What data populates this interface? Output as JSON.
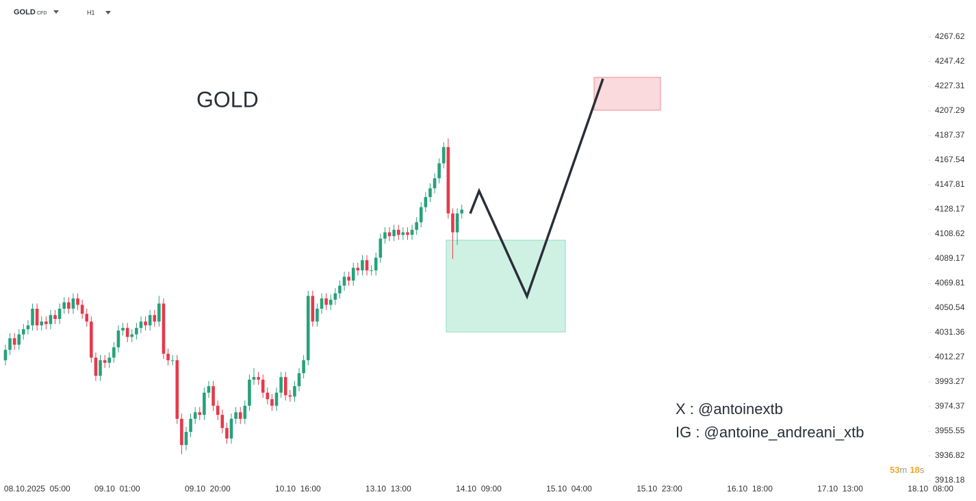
{
  "header": {
    "symbol": "GOLD",
    "symbol_tag": "CFD",
    "interval": "H1"
  },
  "chart_data": {
    "type": "candlestick",
    "log_scale": true,
    "up_color": "#26a17b",
    "down_color": "#e5394a",
    "title": "GOLD",
    "annotations": [
      "X : @antoinextb",
      "IG : @antoine_andreani_xtb"
    ],
    "timer": [
      "53",
      "m",
      "18",
      "s"
    ],
    "open": [
      4010,
      4018,
      4027,
      4022,
      4030,
      4034,
      4037,
      4050,
      4037,
      4040,
      4038,
      4045,
      4042,
      4050,
      4055,
      4050,
      4058,
      4053,
      4046,
      4040,
      4012,
      3998,
      4010,
      4008,
      4012,
      4020,
      4033,
      4035,
      4028,
      4030,
      4035,
      4040,
      4037,
      4045,
      4040,
      4054,
      4015,
      4010,
      4010,
      3965,
      3945,
      3955,
      3965,
      3970,
      3968,
      3985,
      3990,
      3975,
      3968,
      3958,
      3950,
      3965,
      3970,
      3965,
      3975,
      3995,
      3997,
      3995,
      3985,
      3980,
      3975,
      3985,
      3997,
      3983,
      3982,
      3990,
      4000,
      4010,
      4060,
      4040,
      4050,
      4058,
      4053,
      4057,
      4062,
      4068,
      4075,
      4072,
      4082,
      4080,
      4088,
      4080,
      4080,
      4090,
      4105,
      4110,
      4107,
      4112,
      4108,
      4110,
      4108,
      4112,
      4118,
      4130,
      4138,
      4145,
      4153,
      4165,
      4178,
      4125,
      4110,
      4125
    ],
    "high": [
      4022,
      4031,
      4031,
      4034,
      4038,
      4041,
      4054,
      4054,
      4044,
      4044,
      4049,
      4049,
      4054,
      4059,
      4059,
      4062,
      4062,
      4057,
      4050,
      4044,
      4016,
      4014,
      4014,
      4016,
      4024,
      4037,
      4039,
      4039,
      4034,
      4039,
      4044,
      4044,
      4049,
      4049,
      4060,
      4058,
      4019,
      4014,
      4014,
      3969,
      3959,
      3969,
      3974,
      3974,
      3989,
      3994,
      3994,
      3979,
      3972,
      3962,
      3969,
      3974,
      3974,
      3979,
      3999,
      4004,
      4001,
      3999,
      3989,
      3984,
      3989,
      4001,
      4001,
      3987,
      3994,
      4004,
      4014,
      4064,
      4064,
      4054,
      4062,
      4062,
      4061,
      4066,
      4072,
      4079,
      4079,
      4086,
      4086,
      4092,
      4092,
      4084,
      4094,
      4109,
      4114,
      4114,
      4116,
      4116,
      4114,
      4114,
      4116,
      4122,
      4134,
      4142,
      4149,
      4157,
      4169,
      4182,
      4185,
      4129,
      4129,
      4132
    ],
    "low": [
      4006,
      4014,
      4018,
      4018,
      4026,
      4030,
      4033,
      4033,
      4033,
      4034,
      4034,
      4038,
      4038,
      4046,
      4046,
      4046,
      4049,
      4042,
      4036,
      4008,
      3994,
      3994,
      4004,
      4004,
      4008,
      4016,
      4029,
      4024,
      4024,
      4026,
      4031,
      4033,
      4033,
      4036,
      4036,
      4011,
      4006,
      4006,
      3961,
      3938,
      3941,
      3951,
      3961,
      3964,
      3964,
      3981,
      3971,
      3964,
      3954,
      3946,
      3946,
      3961,
      3961,
      3961,
      3971,
      3991,
      3991,
      3981,
      3976,
      3971,
      3971,
      3981,
      3979,
      3978,
      3978,
      3986,
      3996,
      4006,
      4036,
      4036,
      4046,
      4049,
      4049,
      4053,
      4058,
      4064,
      4068,
      4068,
      4076,
      4076,
      4076,
      4076,
      4076,
      4086,
      4101,
      4103,
      4103,
      4104,
      4104,
      4104,
      4104,
      4108,
      4114,
      4126,
      4134,
      4141,
      4149,
      4161,
      4121,
      4089,
      4100,
      4121
    ],
    "close": [
      4018,
      4027,
      4022,
      4030,
      4034,
      4037,
      4050,
      4037,
      4040,
      4038,
      4045,
      4042,
      4050,
      4055,
      4050,
      4058,
      4053,
      4046,
      4040,
      4012,
      3998,
      4010,
      4008,
      4012,
      4020,
      4033,
      4035,
      4028,
      4030,
      4035,
      4040,
      4037,
      4045,
      4040,
      4054,
      4015,
      4010,
      4010,
      3965,
      3945,
      3955,
      3965,
      3970,
      3968,
      3985,
      3990,
      3975,
      3968,
      3958,
      3950,
      3965,
      3970,
      3965,
      3975,
      3995,
      3997,
      3995,
      3985,
      3980,
      3975,
      3985,
      3997,
      3983,
      3982,
      3990,
      4000,
      4010,
      4060,
      4040,
      4050,
      4058,
      4053,
      4057,
      4062,
      4068,
      4075,
      4072,
      4082,
      4080,
      4088,
      4080,
      4080,
      4090,
      4105,
      4110,
      4107,
      4112,
      4108,
      4110,
      4108,
      4112,
      4118,
      4130,
      4138,
      4145,
      4153,
      4165,
      4178,
      4125,
      4110,
      4125,
      4128
    ],
    "xlim": [
      -1.2,
      203.3
    ],
    "xticks": [
      {
        "value": 0,
        "label": "08.10.2025  05:00"
      },
      {
        "value": 20,
        "label": "09.10  01:00"
      },
      {
        "value": 40,
        "label": "09.10  20:00"
      },
      {
        "value": 60,
        "label": "10.10  16:00"
      },
      {
        "value": 80,
        "label": "13.10  13:00"
      },
      {
        "value": 100,
        "label": "14.10  09:00"
      },
      {
        "value": 120,
        "label": "15.10  04:00"
      },
      {
        "value": 140,
        "label": "15.10  23:00"
      },
      {
        "value": 160,
        "label": "16.10  18:00"
      },
      {
        "value": 180,
        "label": "17.10  13:00"
      },
      {
        "value": 200,
        "label": "18.10  08:00"
      }
    ],
    "ylim": [
      3918.18,
      4267.62
    ],
    "yticks": [
      4267.62,
      4247.42,
      4227.31,
      4207.29,
      4187.37,
      4167.54,
      4147.81,
      4128.17,
      4108.62,
      4089.17,
      4069.81,
      4050.54,
      4031.36,
      4012.27,
      3993.27,
      3974.37,
      3955.55,
      3936.82,
      3918.18
    ]
  }
}
